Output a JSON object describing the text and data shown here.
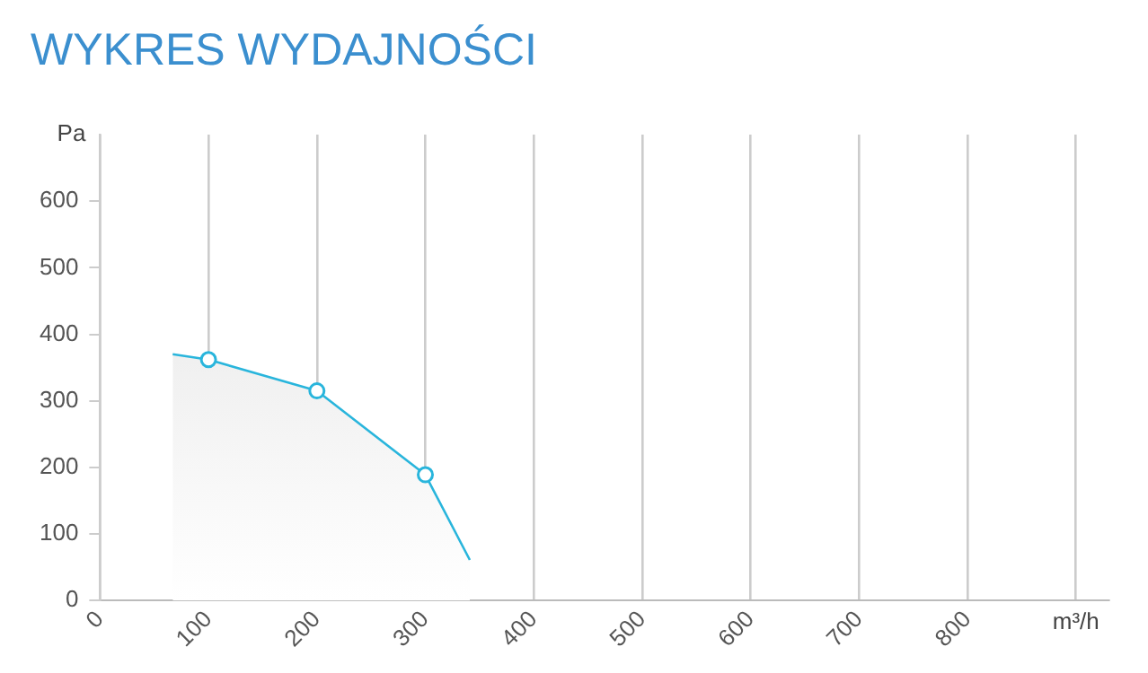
{
  "chart_data": {
    "type": "area",
    "title": "WYKRES WYDAJNOŚCI",
    "xlabel": "m³/h",
    "ylabel": "Pa",
    "xlim": [
      0,
      930
    ],
    "xticks": [
      0,
      100,
      200,
      300,
      400,
      500,
      600,
      700,
      800,
      {
        "value": 900,
        "label": null
      }
    ],
    "ylim": [
      0,
      700
    ],
    "yticks": [
      0,
      100,
      200,
      300,
      400,
      500,
      600
    ],
    "grid": "x",
    "legend": false,
    "series": [
      {
        "type": "area",
        "color": "#29b5dc",
        "marker": "none",
        "x": [
          67,
          100,
          200,
          300,
          341
        ],
        "values": [
          370,
          362,
          315,
          189,
          61
        ]
      },
      {
        "type": "scatter",
        "color": "#29b5dc",
        "marker": "circle",
        "x": [
          100,
          200,
          300
        ],
        "values": [
          362,
          315,
          189
        ]
      }
    ]
  }
}
